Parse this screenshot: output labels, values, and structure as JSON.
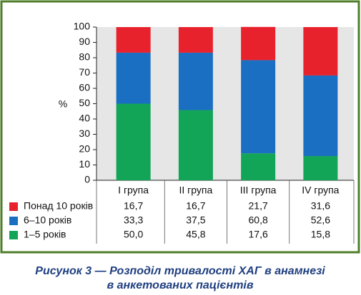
{
  "chart_data": {
    "type": "stacked_bar",
    "y_label": "%",
    "categories": [
      "I група",
      "II група",
      "III група",
      "IV група"
    ],
    "series": [
      {
        "name": "1–5 років",
        "color": "#12a557",
        "values": [
          50.0,
          45.8,
          17.6,
          15.8
        ],
        "value_labels": [
          "50,0",
          "45,8",
          "17,6",
          "15,8"
        ]
      },
      {
        "name": "6–10 років",
        "color": "#1b6fc2",
        "values": [
          33.3,
          37.5,
          60.8,
          52.6
        ],
        "value_labels": [
          "33,3",
          "37,5",
          "60,8",
          "52,6"
        ]
      },
      {
        "name": "Понад 10 років",
        "color": "#e8222c",
        "values": [
          16.7,
          16.7,
          21.7,
          31.6
        ],
        "value_labels": [
          "16,7",
          "16,7",
          "21,7",
          "31,6"
        ]
      }
    ],
    "ylim": [
      0,
      100
    ],
    "yticks": [
      0,
      10,
      20,
      30,
      40,
      50,
      60,
      70,
      80,
      90,
      100
    ],
    "caption": [
      "Рисунок 3 — Розподіл тривалості ХАГ в анамнезі",
      "в анкетованих пацієнтів"
    ]
  }
}
